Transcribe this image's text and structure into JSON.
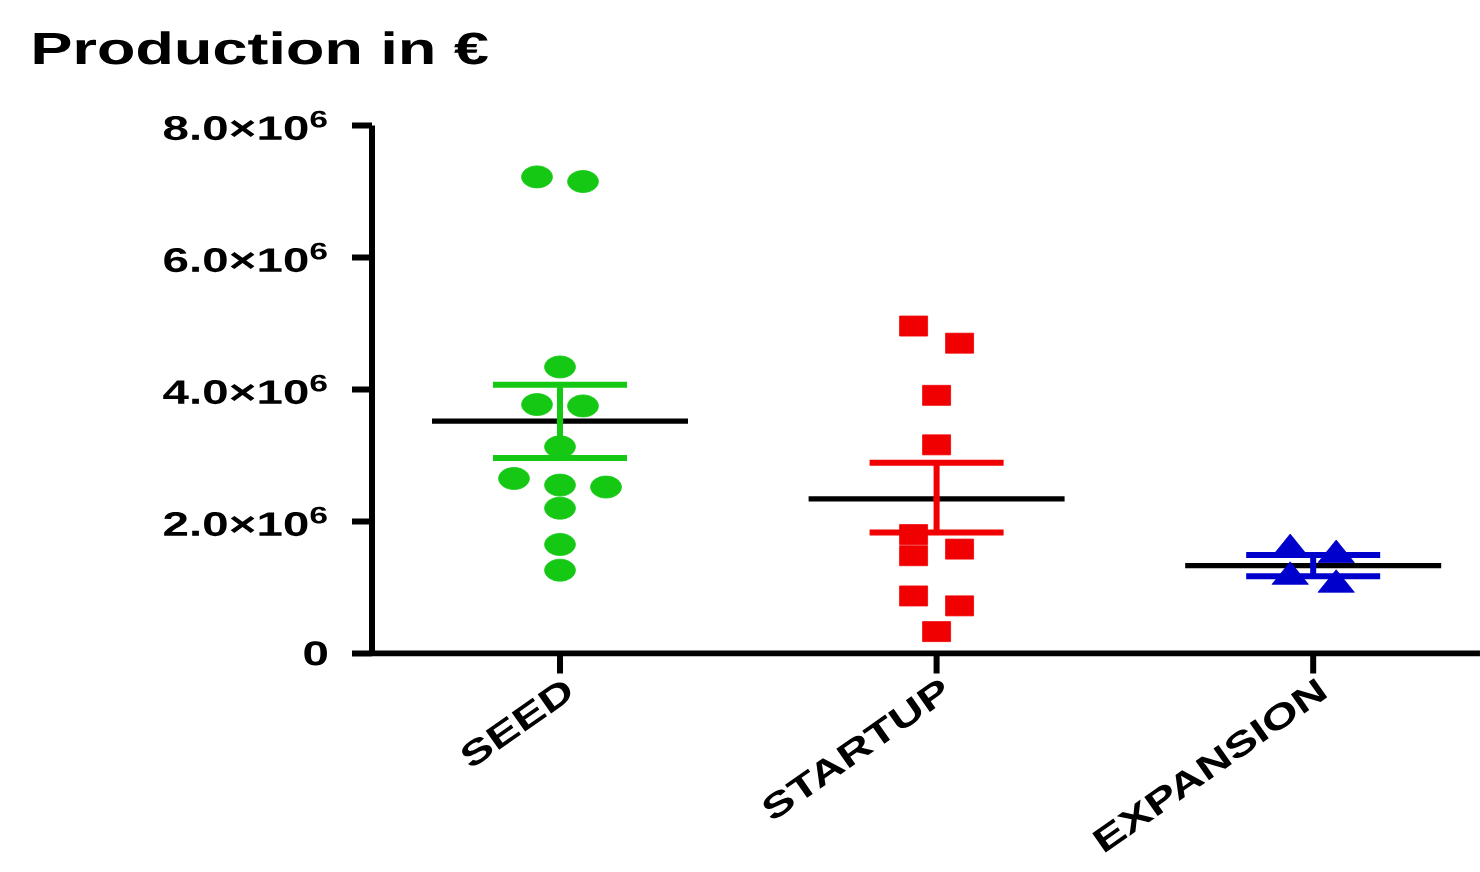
{
  "chart_data": {
    "type": "scatter",
    "title": "Production in €",
    "categories": [
      "SEED",
      "STARTUP",
      "EXPANSION"
    ],
    "ylim": [
      0,
      8000000
    ],
    "yticks": [
      0,
      {
        "value": 2000000,
        "label": "2.0×10$^{6}$"
      },
      {
        "value": 4000000,
        "label": "4.0×10$^{6}$"
      },
      {
        "value": 6000000,
        "label": "6.0×10$^{6}$"
      },
      {
        "value": 8000000,
        "label": "8.0×10$^{6}$"
      }
    ],
    "series": [
      {
        "x": [
          "SEED",
          "SEED",
          "SEED",
          "SEED",
          "SEED",
          "SEED",
          "SEED",
          "SEED",
          "SEED",
          "SEED",
          "SEED",
          "SEED"
        ],
        "values": [
          7220000,
          7150000,
          4340000,
          3770000,
          3750000,
          3130000,
          2650000,
          2520000,
          2550000,
          2200000,
          1650000,
          1260000
        ],
        "color": "#14c814",
        "marker": "circle"
      },
      {
        "x": [
          "STARTUP",
          "STARTUP",
          "STARTUP",
          "STARTUP",
          "STARTUP",
          "STARTUP",
          "STARTUP",
          "STARTUP",
          "STARTUP",
          "STARTUP"
        ],
        "values": [
          4960000,
          4700000,
          3910000,
          3160000,
          1800000,
          1480000,
          1580000,
          870000,
          720000,
          330000
        ],
        "color": "#f00000",
        "marker": "square"
      },
      {
        "x": [
          "EXPANSION",
          "EXPANSION",
          "EXPANSION",
          "EXPANSION"
        ],
        "values": [
          1580000,
          1490000,
          1040000,
          1160000
        ],
        "color": "#0000cd",
        "marker": "triangle"
      },
      {
        "type": "bar",
        "x": [
          "SEED",
          "STARTUP",
          "EXPANSION"
        ],
        "base": [
          3520000,
          2340000,
          1330000
        ],
        "values": [
          0,
          0,
          0
        ],
        "color": "#000000"
      },
      {
        "x": [
          "SEED"
        ],
        "values": [
          3520000
        ],
        "errors": [
          [
            2960000,
            4070000
          ]
        ],
        "color": "#14c814"
      },
      {
        "x": [
          "STARTUP"
        ],
        "values": [
          2340000
        ],
        "errors": [
          [
            1830000,
            2890000
          ]
        ],
        "color": "#f00000"
      },
      {
        "x": [
          "EXPANSION"
        ],
        "values": [
          1330000
        ],
        "errors": [
          [
            1170000,
            1490000
          ]
        ],
        "color": "#0000cd"
      }
    ]
  }
}
